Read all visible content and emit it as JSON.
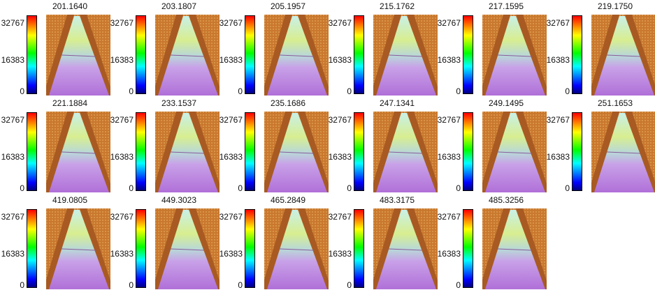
{
  "panels": [
    {
      "title": "201.1640",
      "ticks": [
        "32767",
        "16383",
        "0"
      ]
    },
    {
      "title": "203.1807",
      "ticks": [
        "32767",
        "16383",
        "0"
      ]
    },
    {
      "title": "205.1957",
      "ticks": [
        "32767",
        "16383",
        "0"
      ]
    },
    {
      "title": "215.1762",
      "ticks": [
        "32767",
        "16383",
        "0"
      ]
    },
    {
      "title": "217.1595",
      "ticks": [
        "32767",
        "16383",
        "0"
      ]
    },
    {
      "title": "219.1750",
      "ticks": [
        "32767",
        "16383",
        "0"
      ]
    },
    {
      "title": "221.1884",
      "ticks": [
        "32767",
        "16383",
        "0"
      ]
    },
    {
      "title": "233.1537",
      "ticks": [
        "32767",
        "16383",
        "0"
      ]
    },
    {
      "title": "235.1686",
      "ticks": [
        "32767",
        "16383",
        "0"
      ]
    },
    {
      "title": "247.1341",
      "ticks": [
        "32767",
        "16383",
        "0"
      ]
    },
    {
      "title": "249.1495",
      "ticks": [
        "32767",
        "16383",
        "0"
      ]
    },
    {
      "title": "251.1653",
      "ticks": [
        "32767",
        "16383",
        "0"
      ]
    },
    {
      "title": "419.0805",
      "ticks": [
        "32767",
        "16383",
        "0"
      ]
    },
    {
      "title": "449.3023",
      "ticks": [
        "32767",
        "16383",
        "0"
      ]
    },
    {
      "title": "465.2849",
      "ticks": [
        "32767",
        "16383",
        "0"
      ]
    },
    {
      "title": "483.3175",
      "ticks": [
        "32767",
        "16383",
        "0"
      ]
    },
    {
      "title": "485.3256",
      "ticks": [
        "32767",
        "16383",
        "0"
      ]
    }
  ]
}
